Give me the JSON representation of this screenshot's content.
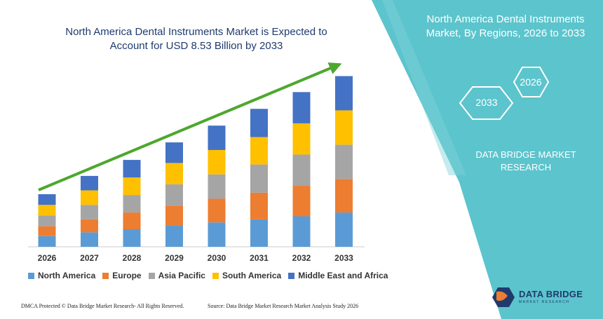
{
  "chart_data": {
    "type": "bar",
    "stacked": true,
    "title_line1": "North America Dental Instruments Market is Expected to",
    "title_line2": "Account for USD 8.53 Billion by 2033",
    "categories": [
      "2026",
      "2027",
      "2028",
      "2029",
      "2030",
      "2031",
      "2032",
      "2033"
    ],
    "series": [
      {
        "name": "North America",
        "color": "#5b9bd5",
        "values": [
          14,
          19,
          23,
          28,
          32,
          36,
          40,
          45
        ]
      },
      {
        "name": "Europe",
        "color": "#ed7d31",
        "values": [
          13,
          17,
          22,
          26,
          31,
          35,
          40,
          44
        ]
      },
      {
        "name": "Asia Pacific",
        "color": "#a5a5a5",
        "values": [
          14,
          19,
          23,
          28,
          32,
          37,
          41,
          45
        ]
      },
      {
        "name": "South America",
        "color": "#ffc000",
        "values": [
          14,
          19,
          23,
          28,
          32,
          36,
          41,
          45
        ]
      },
      {
        "name": "Middle East and Africa",
        "color": "#4472c4",
        "values": [
          14,
          19,
          23,
          27,
          32,
          37,
          41,
          45
        ]
      }
    ],
    "ylim": [
      0,
      230
    ],
    "grid": false,
    "legend_position": "bottom",
    "trend_arrow": true
  },
  "panel": {
    "title_line1": "North America Dental Instruments",
    "title_line2": "Market, By Regions, 2026 to 2033",
    "hex_a": "2026",
    "hex_b": "2033",
    "brand_line1": "DATA BRIDGE MARKET",
    "brand_line2": "RESEARCH",
    "bg_color": "#5cc4cc"
  },
  "footer": {
    "left": "DMCA Protected © Data Bridge Market Research- All Rights Reserved.",
    "right": "Source: Data Bridge Market Research Market Analysis Study 2026"
  },
  "logo": {
    "name": "DATA BRIDGE",
    "tagline": "MARKET RESEARCH"
  },
  "colors": {
    "arrow": "#4ea72e",
    "title": "#1f3b6e"
  }
}
